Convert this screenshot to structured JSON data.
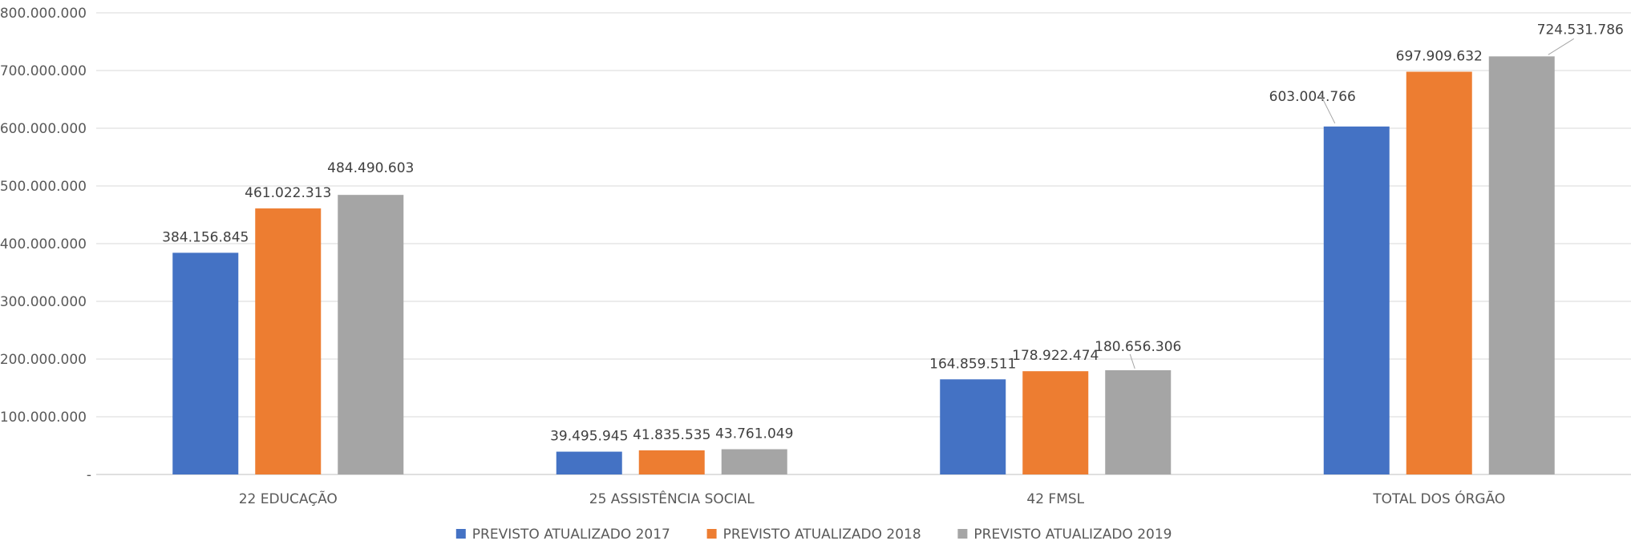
{
  "chart_data": {
    "type": "bar",
    "title": "",
    "xlabel": "",
    "ylabel": "",
    "categories": [
      "22 EDUCAÇÃO",
      "25 ASSISTÊNCIA SOCIAL",
      "42 FMSL",
      "TOTAL DOS ÓRGÃO"
    ],
    "series": [
      {
        "name": "PREVISTO ATUALIZADO 2017",
        "color": "#4472C4",
        "values": [
          384156845,
          39495945,
          164859511,
          603004766
        ],
        "labels": [
          "384.156.845",
          "39.495.945",
          "164.859.511",
          "603.004.766"
        ]
      },
      {
        "name": "PREVISTO ATUALIZADO 2018",
        "color": "#ED7D31",
        "values": [
          461022313,
          41835535,
          178922474,
          697909632
        ],
        "labels": [
          "461.022.313",
          "41.835.535",
          "178.922.474",
          "697.909.632"
        ]
      },
      {
        "name": "PREVISTO ATUALIZADO 2019",
        "color": "#A5A5A5",
        "values": [
          484490603,
          43761049,
          180656306,
          724531786
        ],
        "labels": [
          "484.490.603",
          "43.761.049",
          "180.656.306",
          "724.531.786"
        ]
      }
    ],
    "ylim": [
      0,
      800000000
    ],
    "yticks": [
      0,
      100000000,
      200000000,
      300000000,
      400000000,
      500000000,
      600000000,
      700000000,
      800000000
    ],
    "ytick_labels": [
      "-",
      "100.000.000",
      "200.000.000",
      "300.000.000",
      "400.000.000",
      "500.000.000",
      "600.000.000",
      "700.000.000",
      "800.000.000"
    ],
    "grid": true,
    "legend_position": "bottom"
  }
}
